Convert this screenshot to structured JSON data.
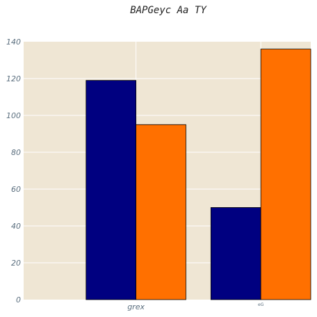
{
  "chart_data": {
    "type": "bar",
    "title": "BAPGeyc Aa TY",
    "xlabel": "",
    "ylabel": "",
    "categories": [
      "grex",
      "eG"
    ],
    "series": [
      {
        "color": "#000080",
        "values": [
          119,
          50
        ]
      },
      {
        "color": "#ff7000",
        "values": [
          95,
          136
        ]
      }
    ],
    "ylim": [
      0,
      140
    ],
    "yticks": [
      0,
      20,
      40,
      60,
      80,
      100,
      120,
      140
    ],
    "grid": true,
    "legend": "none",
    "plot_background": "#efe6d4",
    "grid_color": "#ffffff"
  }
}
